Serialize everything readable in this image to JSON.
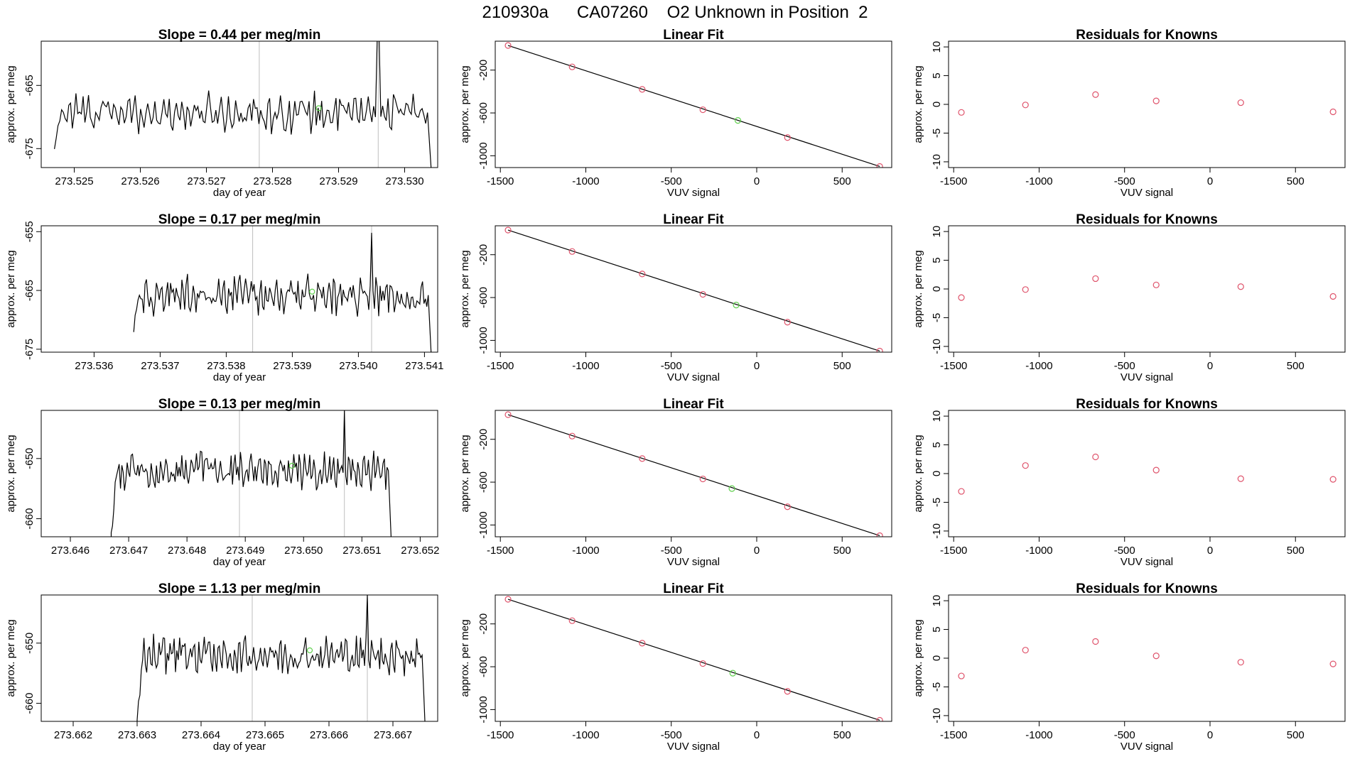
{
  "figure_title": "210930a      CA07260    O2 Unknown in Position  2",
  "colors": {
    "trace": "#000000",
    "vline": "#bebebe",
    "known": "#df536b",
    "unknown": "#61d04f",
    "axis": "#000000"
  },
  "chart_data": [
    {
      "type": "line",
      "title": "Slope =  0.44  per meg/min",
      "xlabel": "day of year",
      "ylabel": "approx. per meg",
      "xlim": [
        273.5245,
        273.5305
      ],
      "ylim": [
        -678,
        -658
      ],
      "xticks": [
        273.525,
        273.526,
        273.527,
        273.528,
        273.529,
        273.53
      ],
      "xticklabels": [
        "273.525",
        "273.526",
        "273.527",
        "273.528",
        "273.529",
        "273.530"
      ],
      "yticks": [
        -665,
        -675
      ],
      "yticklabels": [
        "-665",
        "-675"
      ],
      "x_start": 273.5247,
      "x_end": 273.5304,
      "base": -669.3,
      "amplitude": 2.2,
      "trace_start_value": -674.5,
      "spike": {
        "x": 273.5296,
        "y": -657
      },
      "drop_to": -678,
      "vlines": [
        273.5278,
        273.5296
      ],
      "unknown_point": {
        "x": 273.5287,
        "y": -668.6
      }
    },
    {
      "type": "scatter",
      "title": "Linear Fit",
      "xlabel": "VUV signal",
      "ylabel": "approx. per meg",
      "xlim": [
        -1530,
        790
      ],
      "ylim": [
        -1110,
        70
      ],
      "xticks": [
        -1500,
        -1000,
        -500,
        0,
        500
      ],
      "xticklabels": [
        "-1500",
        "-1000",
        "-500",
        "0",
        "500"
      ],
      "yticks": [
        -200,
        -600,
        -1000
      ],
      "yticklabels": [
        "-200",
        "-600",
        "-1000"
      ],
      "known_points": [
        [
          -1455,
          30
        ],
        [
          -1080,
          -170
        ],
        [
          -670,
          -380
        ],
        [
          -315,
          -570
        ],
        [
          180,
          -830
        ],
        [
          720,
          -1100
        ]
      ],
      "unknown_point": [
        -110,
        -670
      ],
      "fit_line": [
        [
          -1455,
          30
        ],
        [
          720,
          -1100
        ]
      ]
    },
    {
      "type": "scatter",
      "title": "Residuals for Knowns",
      "xlabel": "VUV signal",
      "ylabel": "approx. per meg",
      "xlim": [
        -1530,
        790
      ],
      "ylim": [
        -11,
        11
      ],
      "xticks": [
        -1500,
        -1000,
        -500,
        0,
        500
      ],
      "xticklabels": [
        "-1500",
        "-1000",
        "-500",
        "0",
        "500"
      ],
      "yticks": [
        10,
        5,
        0,
        -5,
        -10
      ],
      "yticklabels": [
        "10",
        "5",
        "0",
        "-5",
        "-10"
      ],
      "points": [
        [
          -1455,
          -1.4
        ],
        [
          -1080,
          -0.1
        ],
        [
          -670,
          1.7
        ],
        [
          -315,
          0.6
        ],
        [
          180,
          0.3
        ],
        [
          720,
          -1.3
        ]
      ]
    },
    {
      "type": "line",
      "title": "Slope =  0.17  per meg/min",
      "xlabel": "day of year",
      "ylabel": "approx. per meg",
      "xlim": [
        273.5352,
        273.5412
      ],
      "ylim": [
        -675.5,
        -654
      ],
      "xticks": [
        273.536,
        273.537,
        273.538,
        273.539,
        273.54,
        273.541
      ],
      "xticklabels": [
        "273.536",
        "273.537",
        "273.538",
        "273.539",
        "273.540",
        "273.541"
      ],
      "yticks": [
        -655,
        -665,
        -675
      ],
      "yticklabels": [
        "-655",
        "-665",
        "-675"
      ],
      "x_start": 273.5366,
      "x_end": 273.5411,
      "base": -665.8,
      "amplitude": 2.3,
      "trace_start_value": -671,
      "spike": {
        "x": 273.5402,
        "y": -655.2
      },
      "drop_to": -675.5,
      "vlines": [
        273.5384,
        273.5402
      ],
      "unknown_point": {
        "x": 273.5393,
        "y": -665.2
      }
    },
    {
      "type": "scatter",
      "title": "Linear Fit",
      "xlabel": "VUV signal",
      "ylabel": "approx. per meg",
      "xlim": [
        -1530,
        790
      ],
      "ylim": [
        -1110,
        70
      ],
      "xticks": [
        -1500,
        -1000,
        -500,
        0,
        500
      ],
      "xticklabels": [
        "-1500",
        "-1000",
        "-500",
        "0",
        "500"
      ],
      "yticks": [
        -200,
        -600,
        -1000
      ],
      "yticklabels": [
        "-200",
        "-600",
        "-1000"
      ],
      "known_points": [
        [
          -1455,
          30
        ],
        [
          -1080,
          -170
        ],
        [
          -670,
          -380
        ],
        [
          -315,
          -570
        ],
        [
          180,
          -830
        ],
        [
          720,
          -1100
        ]
      ],
      "unknown_point": [
        -120,
        -670
      ],
      "fit_line": [
        [
          -1455,
          30
        ],
        [
          720,
          -1100
        ]
      ]
    },
    {
      "type": "scatter",
      "title": "Residuals for Knowns",
      "xlabel": "VUV signal",
      "ylabel": "approx. per meg",
      "xlim": [
        -1530,
        790
      ],
      "ylim": [
        -11,
        11
      ],
      "xticks": [
        -1500,
        -1000,
        -500,
        0,
        500
      ],
      "xticklabels": [
        "-1500",
        "-1000",
        "-500",
        "0",
        "500"
      ],
      "yticks": [
        10,
        5,
        0,
        -5,
        -10
      ],
      "yticklabels": [
        "10",
        "5",
        "0",
        "-5",
        "-10"
      ],
      "points": [
        [
          -1455,
          -1.5
        ],
        [
          -1080,
          -0.1
        ],
        [
          -670,
          1.8
        ],
        [
          -315,
          0.7
        ],
        [
          180,
          0.4
        ],
        [
          720,
          -1.3
        ]
      ]
    },
    {
      "type": "line",
      "title": "Slope =  0.13  per meg/min",
      "xlabel": "day of year",
      "ylabel": "approx. per meg",
      "xlim": [
        273.6455,
        273.6523
      ],
      "ylim": [
        -663,
        -642
      ],
      "xticks": [
        273.646,
        273.647,
        273.648,
        273.649,
        273.65,
        273.651,
        273.652
      ],
      "xticklabels": [
        "273.646",
        "273.647",
        "273.648",
        "273.649",
        "273.650",
        "273.651",
        "273.652"
      ],
      "yticks": [
        -650,
        -660
      ],
      "yticklabels": [
        "-650",
        "-660"
      ],
      "x_start": 273.6467,
      "x_end": 273.6515,
      "base": -652,
      "amplitude": 2.3,
      "trace_start_value": -663,
      "spike": {
        "x": 273.6507,
        "y": -642
      },
      "drop_to": -663,
      "vlines": [
        273.6489,
        273.6507
      ],
      "unknown_point": {
        "x": 273.6498,
        "y": -651.2
      }
    },
    {
      "type": "scatter",
      "title": "Linear Fit",
      "xlabel": "VUV signal",
      "ylabel": "approx. per meg",
      "xlim": [
        -1530,
        790
      ],
      "ylim": [
        -1110,
        70
      ],
      "xticks": [
        -1500,
        -1000,
        -500,
        0,
        500
      ],
      "xticklabels": [
        "-1500",
        "-1000",
        "-500",
        "0",
        "500"
      ],
      "yticks": [
        -200,
        -600,
        -1000
      ],
      "yticklabels": [
        "-200",
        "-600",
        "-1000"
      ],
      "known_points": [
        [
          -1455,
          30
        ],
        [
          -1080,
          -170
        ],
        [
          -670,
          -380
        ],
        [
          -315,
          -570
        ],
        [
          180,
          -830
        ],
        [
          720,
          -1100
        ]
      ],
      "unknown_point": [
        -145,
        -660
      ],
      "fit_line": [
        [
          -1455,
          30
        ],
        [
          720,
          -1100
        ]
      ]
    },
    {
      "type": "scatter",
      "title": "Residuals for Knowns",
      "xlabel": "VUV signal",
      "ylabel": "approx. per meg",
      "xlim": [
        -1530,
        790
      ],
      "ylim": [
        -11,
        11
      ],
      "xticks": [
        -1500,
        -1000,
        -500,
        0,
        500
      ],
      "xticklabels": [
        "-1500",
        "-1000",
        "-500",
        "0",
        "500"
      ],
      "yticks": [
        10,
        5,
        0,
        -5,
        -10
      ],
      "yticklabels": [
        "10",
        "5",
        "0",
        "-5",
        "-10"
      ],
      "points": [
        [
          -1455,
          -3.1
        ],
        [
          -1080,
          1.4
        ],
        [
          -670,
          2.9
        ],
        [
          -315,
          0.6
        ],
        [
          180,
          -0.9
        ],
        [
          720,
          -1.0
        ]
      ]
    },
    {
      "type": "line",
      "title": "Slope =  1.13  per meg/min",
      "xlabel": "day of year",
      "ylabel": "approx. per meg",
      "xlim": [
        273.6615,
        273.6677
      ],
      "ylim": [
        -663,
        -642
      ],
      "xticks": [
        273.662,
        273.663,
        273.664,
        273.665,
        273.666,
        273.667
      ],
      "xticklabels": [
        "273.662",
        "273.663",
        "273.664",
        "273.665",
        "273.666",
        "273.667"
      ],
      "yticks": [
        -650,
        -660
      ],
      "yticklabels": [
        "-650",
        "-660"
      ],
      "x_start": 273.663,
      "x_end": 273.6675,
      "base": -652,
      "amplitude": 2.3,
      "trace_start_value": -663,
      "spike": {
        "x": 273.6666,
        "y": -642
      },
      "drop_to": -663,
      "vlines": [
        273.6648,
        273.6666
      ],
      "unknown_point": {
        "x": 273.6657,
        "y": -651.2
      }
    },
    {
      "type": "scatter",
      "title": "Linear Fit",
      "xlabel": "VUV signal",
      "ylabel": "approx. per meg",
      "xlim": [
        -1530,
        790
      ],
      "ylim": [
        -1110,
        70
      ],
      "xticks": [
        -1500,
        -1000,
        -500,
        0,
        500
      ],
      "xticklabels": [
        "-1500",
        "-1000",
        "-500",
        "0",
        "500"
      ],
      "yticks": [
        -200,
        -600,
        -1000
      ],
      "yticklabels": [
        "-200",
        "-600",
        "-1000"
      ],
      "known_points": [
        [
          -1455,
          30
        ],
        [
          -1080,
          -170
        ],
        [
          -670,
          -380
        ],
        [
          -315,
          -570
        ],
        [
          180,
          -830
        ],
        [
          720,
          -1100
        ]
      ],
      "unknown_point": [
        -140,
        -660
      ],
      "fit_line": [
        [
          -1455,
          30
        ],
        [
          720,
          -1100
        ]
      ]
    },
    {
      "type": "scatter",
      "title": "Residuals for Knowns",
      "xlabel": "VUV signal",
      "ylabel": "approx. per meg",
      "xlim": [
        -1530,
        790
      ],
      "ylim": [
        -11,
        11
      ],
      "xticks": [
        -1500,
        -1000,
        -500,
        0,
        500
      ],
      "xticklabels": [
        "-1500",
        "-1000",
        "-500",
        "0",
        "500"
      ],
      "yticks": [
        10,
        5,
        0,
        -5,
        -10
      ],
      "yticklabels": [
        "10",
        "5",
        "0",
        "-5",
        "-10"
      ],
      "points": [
        [
          -1455,
          -3.1
        ],
        [
          -1080,
          1.4
        ],
        [
          -670,
          2.9
        ],
        [
          -315,
          0.4
        ],
        [
          180,
          -0.7
        ],
        [
          720,
          -1.0
        ]
      ]
    }
  ]
}
